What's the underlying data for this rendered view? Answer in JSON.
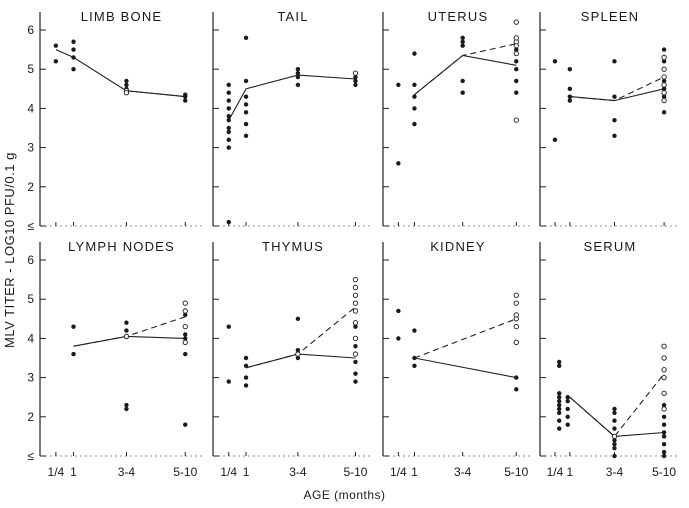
{
  "figure": {
    "ylabel": "MLV TITER - LOG10 PFU/0.1 g",
    "xlabel": "AGE (months)",
    "y_tick_labels": [
      "≤",
      "2",
      "3",
      "4",
      "5",
      "6"
    ],
    "x_tick_labels": [
      "1/4",
      "1",
      "3-4",
      "5-10"
    ]
  },
  "chart_data": [
    {
      "type": "scatter",
      "title": "LIMB BONE",
      "ylim": [
        1,
        6
      ],
      "x_categories": [
        "1/4",
        "1",
        "3-4",
        "5-10"
      ],
      "series": [
        {
          "marker": "filled",
          "points": [
            [
              0,
              5.2
            ],
            [
              0,
              5.6
            ],
            [
              0.35,
              5.0
            ],
            [
              0.35,
              5.3
            ],
            [
              0.35,
              5.5
            ],
            [
              0.35,
              5.7
            ],
            [
              1,
              4.7
            ],
            [
              1,
              4.6
            ],
            [
              1,
              4.5
            ],
            [
              2,
              4.3
            ],
            [
              2,
              4.35
            ],
            [
              2,
              4.2
            ]
          ],
          "mean_line": [
            5.5,
            5.3,
            4.45,
            4.3
          ]
        },
        {
          "marker": "open",
          "points": [
            [
              1,
              4.45
            ],
            [
              1,
              4.4
            ]
          ],
          "mean_line": [
            null,
            null,
            4.45,
            4.3
          ]
        }
      ]
    },
    {
      "type": "scatter",
      "title": "TAIL",
      "ylim": [
        1,
        6
      ],
      "x_categories": [
        "1/4",
        "1",
        "3-4",
        "5-10"
      ],
      "series": [
        {
          "marker": "filled",
          "points": [
            [
              0,
              3.0
            ],
            [
              0,
              3.2
            ],
            [
              0,
              3.4
            ],
            [
              0,
              3.5
            ],
            [
              0,
              3.7
            ],
            [
              0,
              3.8
            ],
            [
              0,
              4.0
            ],
            [
              0,
              4.2
            ],
            [
              0,
              4.4
            ],
            [
              0,
              4.6
            ],
            [
              0,
              1.1
            ],
            [
              0.35,
              3.3
            ],
            [
              0.35,
              3.6
            ],
            [
              0.35,
              3.9
            ],
            [
              0.35,
              4.1
            ],
            [
              0.35,
              4.3
            ],
            [
              0.35,
              4.7
            ],
            [
              0.35,
              5.8
            ],
            [
              1,
              4.6
            ],
            [
              1,
              4.8
            ],
            [
              1,
              4.9
            ],
            [
              1,
              5.0
            ],
            [
              2,
              4.7
            ],
            [
              2,
              4.8
            ],
            [
              2,
              4.6
            ]
          ],
          "mean_line": [
            3.7,
            4.5,
            4.85,
            4.75
          ]
        },
        {
          "marker": "open",
          "points": [
            [
              2,
              4.9
            ]
          ],
          "mean_line": []
        }
      ]
    },
    {
      "type": "scatter",
      "title": "UTERUS",
      "ylim": [
        1,
        6
      ],
      "x_categories": [
        "1/4",
        "1",
        "3-4",
        "5-10"
      ],
      "series": [
        {
          "marker": "filled",
          "points": [
            [
              0,
              2.6
            ],
            [
              0,
              4.6
            ],
            [
              0.35,
              3.6
            ],
            [
              0.35,
              4.0
            ],
            [
              0.35,
              4.3
            ],
            [
              0.35,
              4.6
            ],
            [
              0.35,
              5.4
            ],
            [
              1,
              4.4
            ],
            [
              1,
              4.7
            ],
            [
              1,
              5.6
            ],
            [
              1,
              5.7
            ],
            [
              1,
              5.8
            ],
            [
              2,
              4.4
            ],
            [
              2,
              4.7
            ],
            [
              2,
              5.0
            ],
            [
              2,
              5.2
            ],
            [
              2,
              5.5
            ],
            [
              2,
              5.7
            ]
          ],
          "mean_line": [
            null,
            4.35,
            5.35,
            5.1
          ]
        },
        {
          "marker": "open",
          "points": [
            [
              2,
              3.7
            ],
            [
              2,
              5.4
            ],
            [
              2,
              5.6
            ],
            [
              2,
              5.7
            ],
            [
              2,
              5.8
            ],
            [
              2,
              6.2
            ]
          ],
          "mean_line": [
            null,
            4.35,
            5.35,
            5.65
          ]
        }
      ]
    },
    {
      "type": "scatter",
      "title": "SPLEEN",
      "ylim": [
        1,
        6
      ],
      "x_categories": [
        "1/4",
        "1",
        "3-4",
        "5-10"
      ],
      "series": [
        {
          "marker": "filled",
          "points": [
            [
              0,
              3.2
            ],
            [
              0,
              5.2
            ],
            [
              0.35,
              4.2
            ],
            [
              0.35,
              4.3
            ],
            [
              0.35,
              4.5
            ],
            [
              0.35,
              5.0
            ],
            [
              1,
              3.3
            ],
            [
              1,
              3.7
            ],
            [
              1,
              4.3
            ],
            [
              1,
              5.2
            ],
            [
              2,
              3.9
            ],
            [
              2,
              4.3
            ],
            [
              2,
              4.5
            ],
            [
              2,
              4.7
            ],
            [
              2,
              5.0
            ],
            [
              2,
              5.2
            ],
            [
              2,
              5.5
            ]
          ],
          "mean_line": [
            null,
            4.3,
            4.2,
            4.5
          ]
        },
        {
          "marker": "open",
          "points": [
            [
              2,
              4.2
            ],
            [
              2,
              4.4
            ],
            [
              2,
              4.6
            ],
            [
              2,
              4.8
            ],
            [
              2,
              5.0
            ],
            [
              2,
              5.3
            ]
          ],
          "mean_line": [
            null,
            4.3,
            4.2,
            4.8
          ]
        }
      ]
    },
    {
      "type": "scatter",
      "title": "LYMPH NODES",
      "ylim": [
        1,
        6
      ],
      "x_categories": [
        "1/4",
        "1",
        "3-4",
        "5-10"
      ],
      "series": [
        {
          "marker": "filled",
          "points": [
            [
              0.35,
              3.6
            ],
            [
              0.35,
              4.3
            ],
            [
              1,
              2.2
            ],
            [
              1,
              2.3
            ],
            [
              1,
              4.2
            ],
            [
              1,
              4.4
            ],
            [
              2,
              1.8
            ],
            [
              2,
              3.6
            ],
            [
              2,
              4.0
            ],
            [
              2,
              4.1
            ],
            [
              2,
              4.6
            ]
          ],
          "mean_line": [
            null,
            3.8,
            4.05,
            4.0
          ]
        },
        {
          "marker": "open",
          "points": [
            [
              1,
              4.05
            ],
            [
              2,
              3.9
            ],
            [
              2,
              4.3
            ],
            [
              2,
              4.7
            ],
            [
              2,
              4.9
            ]
          ],
          "mean_line": [
            null,
            3.8,
            4.05,
            4.55
          ]
        }
      ]
    },
    {
      "type": "scatter",
      "title": "THYMUS",
      "ylim": [
        1,
        6
      ],
      "x_categories": [
        "1/4",
        "1",
        "3-4",
        "5-10"
      ],
      "series": [
        {
          "marker": "filled",
          "points": [
            [
              0,
              2.9
            ],
            [
              0,
              4.3
            ],
            [
              0.35,
              2.8
            ],
            [
              0.35,
              3.0
            ],
            [
              0.35,
              3.3
            ],
            [
              0.35,
              3.5
            ],
            [
              1,
              3.5
            ],
            [
              1,
              3.7
            ],
            [
              1,
              4.5
            ],
            [
              2,
              2.9
            ],
            [
              2,
              3.1
            ],
            [
              2,
              3.4
            ],
            [
              2,
              3.8
            ],
            [
              2,
              4.0
            ],
            [
              2,
              4.3
            ]
          ],
          "mean_line": [
            null,
            3.25,
            3.6,
            3.5
          ]
        },
        {
          "marker": "open",
          "points": [
            [
              1,
              3.6
            ],
            [
              2,
              3.6
            ],
            [
              2,
              4.0
            ],
            [
              2,
              4.4
            ],
            [
              2,
              4.7
            ],
            [
              2,
              4.9
            ],
            [
              2,
              5.1
            ],
            [
              2,
              5.3
            ],
            [
              2,
              5.5
            ]
          ],
          "mean_line": [
            null,
            3.25,
            3.6,
            4.8
          ]
        }
      ]
    },
    {
      "type": "scatter",
      "title": "KIDNEY",
      "ylim": [
        1,
        6
      ],
      "x_categories": [
        "1/4",
        "1",
        "3-4",
        "5-10"
      ],
      "series": [
        {
          "marker": "filled",
          "points": [
            [
              0,
              4.0
            ],
            [
              0,
              4.7
            ],
            [
              0.35,
              3.3
            ],
            [
              0.35,
              3.5
            ],
            [
              0.35,
              4.2
            ],
            [
              2,
              2.7
            ],
            [
              2,
              3.0
            ]
          ],
          "mean_line": [
            null,
            3.5,
            null,
            3.0
          ]
        },
        {
          "marker": "open",
          "points": [
            [
              2,
              3.9
            ],
            [
              2,
              4.3
            ],
            [
              2,
              4.5
            ],
            [
              2,
              4.6
            ],
            [
              2,
              4.9
            ],
            [
              2,
              5.1
            ]
          ],
          "mean_line": [
            null,
            3.5,
            null,
            4.5
          ]
        }
      ]
    },
    {
      "type": "scatter",
      "title": "SERUM",
      "ylim": [
        1,
        6
      ],
      "x_categories": [
        "1/4",
        "1",
        "3-4",
        "5-10"
      ],
      "series": [
        {
          "marker": "filled",
          "points": [
            [
              0.1,
              1.7
            ],
            [
              0.1,
              1.9
            ],
            [
              0.1,
              2.1
            ],
            [
              0.1,
              2.2
            ],
            [
              0.1,
              2.3
            ],
            [
              0.1,
              2.4
            ],
            [
              0.1,
              2.5
            ],
            [
              0.1,
              2.6
            ],
            [
              0.1,
              3.3
            ],
            [
              0.1,
              3.4
            ],
            [
              0.3,
              1.8
            ],
            [
              0.3,
              2.0
            ],
            [
              0.3,
              2.2
            ],
            [
              0.3,
              2.4
            ],
            [
              0.3,
              2.5
            ],
            [
              1,
              1.0
            ],
            [
              1,
              1.2
            ],
            [
              1,
              1.3
            ],
            [
              1,
              1.4
            ],
            [
              1,
              1.5
            ],
            [
              1,
              1.7
            ],
            [
              1,
              1.9
            ],
            [
              1,
              2.1
            ],
            [
              1,
              2.2
            ],
            [
              2,
              1.0
            ],
            [
              2,
              1.1
            ],
            [
              2,
              1.3
            ],
            [
              2,
              1.5
            ],
            [
              2,
              1.6
            ],
            [
              2,
              1.8
            ],
            [
              2,
              2.0
            ],
            [
              2,
              2.3
            ]
          ],
          "mean_line": [
            null,
            2.5,
            1.5,
            1.6
          ]
        },
        {
          "marker": "open",
          "points": [
            [
              1,
              1.5
            ],
            [
              2,
              2.2
            ],
            [
              2,
              2.6
            ],
            [
              2,
              3.0
            ],
            [
              2,
              3.2
            ],
            [
              2,
              3.5
            ],
            [
              2,
              3.8
            ]
          ],
          "mean_line": [
            null,
            2.5,
            1.5,
            3.1
          ]
        }
      ]
    }
  ]
}
